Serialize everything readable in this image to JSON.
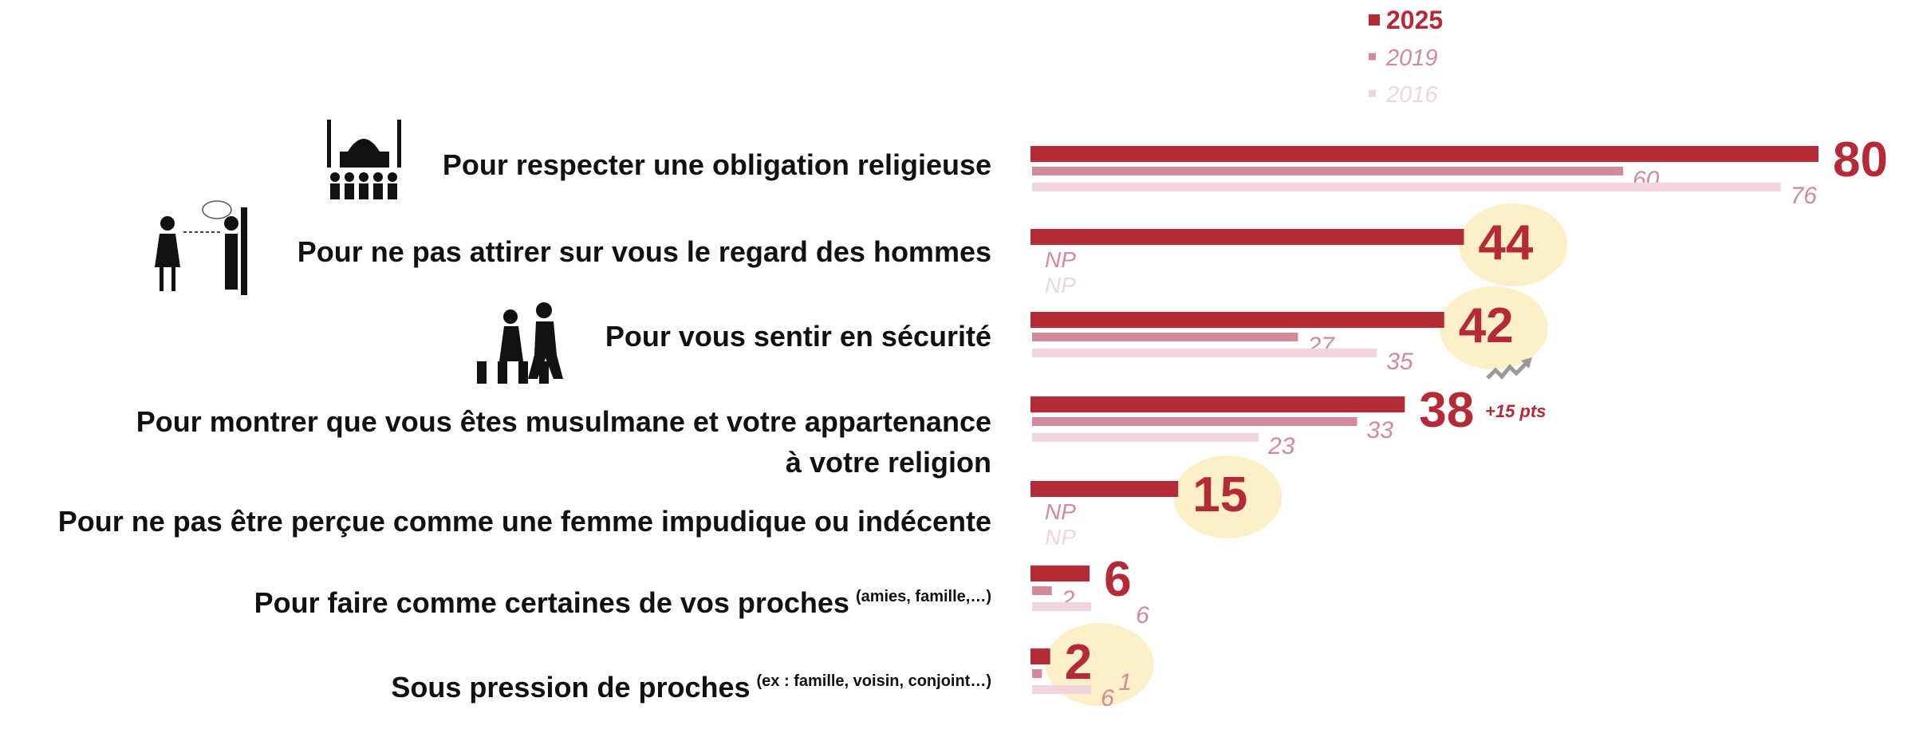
{
  "chart_data": {
    "type": "bar",
    "orientation": "horizontal",
    "legend_placement": "top",
    "series": [
      {
        "name": "2025",
        "color": "#b52a37",
        "values": [
          80,
          44,
          42,
          38,
          15,
          6,
          2
        ]
      },
      {
        "name": "2019",
        "color": "#d4899a",
        "values": [
          60,
          null,
          27,
          33,
          null,
          2,
          1
        ]
      },
      {
        "name": "2016",
        "color": "#f0d5dc",
        "values": [
          76,
          null,
          35,
          23,
          null,
          6,
          6
        ]
      }
    ],
    "missing_label": "NP",
    "categories": [
      {
        "text": "Pour respecter une obligation religieuse",
        "note": "",
        "icon": "mosque-icon"
      },
      {
        "text": "Pour ne pas attirer sur vous le regard des hommes",
        "note": "",
        "icon": "harassment-icon"
      },
      {
        "text": "Pour vous sentir en sécurité",
        "note": "",
        "icon": "pedestrians-icon"
      },
      {
        "text": "Pour montrer que vous êtes musulmane et votre appartenance",
        "text2": "à votre religion",
        "note": "",
        "icon": ""
      },
      {
        "text": "Pour ne pas être perçue comme une femme impudique ou indécente",
        "note": "",
        "icon": ""
      },
      {
        "text": "Pour faire comme certaines de vos proches",
        "note": "(amies, famille,…)",
        "icon": ""
      },
      {
        "text": "Sous pression de proches",
        "note": "(ex : famille, voisin, conjoint…)",
        "icon": ""
      }
    ],
    "highlighted": [
      1,
      2,
      4,
      6
    ],
    "annotations": [
      {
        "category": 3,
        "text": "+15 pts",
        "icon": "trend-up-icon"
      }
    ],
    "highlight_color": "#fdf0c8"
  }
}
